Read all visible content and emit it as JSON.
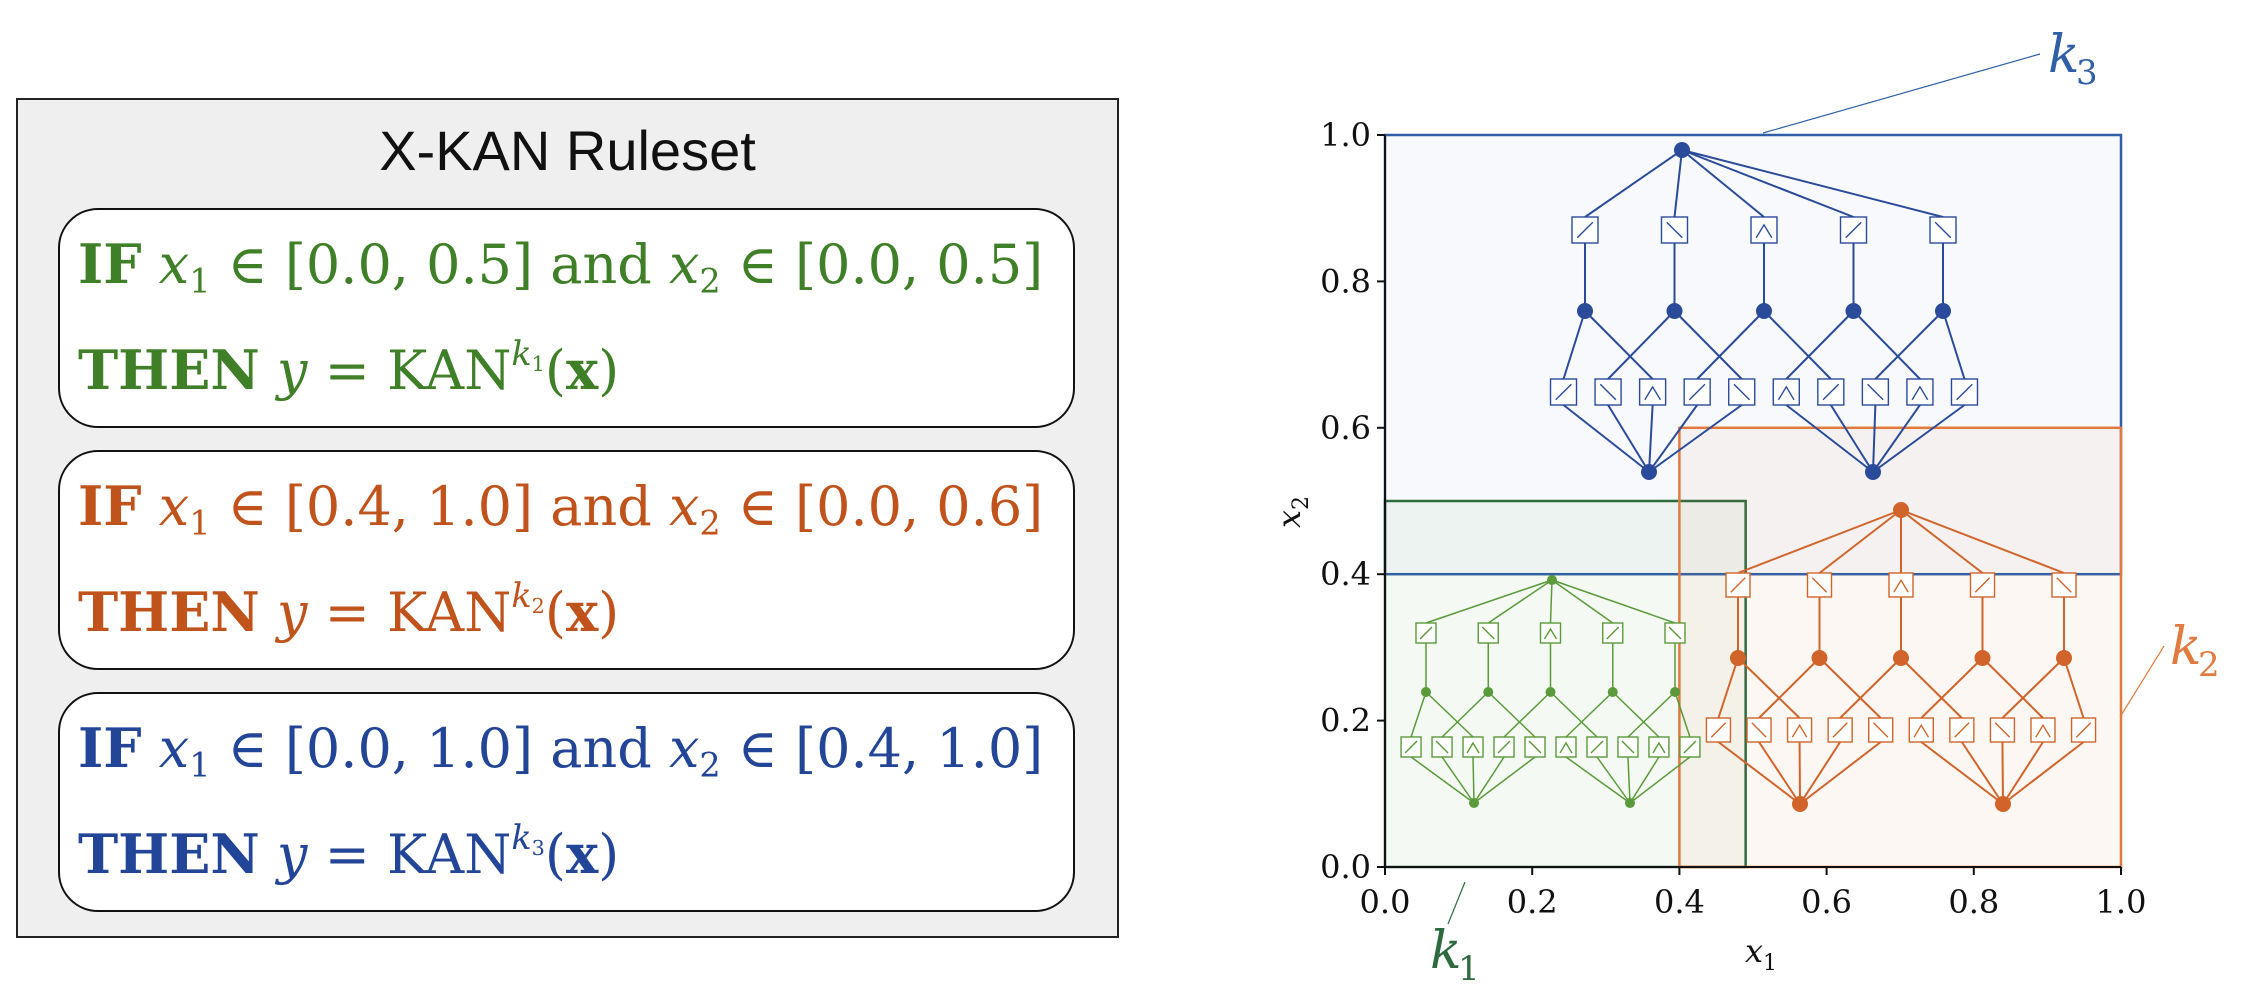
{
  "ruleset": {
    "title": "X-KAN Ruleset",
    "rules": [
      {
        "color": "#3f7f27",
        "if_kw": "IF",
        "x1": "x",
        "x1_sub": "1",
        "in1": " ∈ [0.0, 0.5] ",
        "and": "and",
        "x2": " x",
        "x2_sub": "2",
        "in2": " ∈ [0.0, 0.5]",
        "then_kw": "THEN",
        "y": " y",
        "eq": " = KAN",
        "sup_k": "k",
        "sup_sub": "1",
        "paren_open": "(",
        "xbold": "x",
        "paren_close": ")"
      },
      {
        "color": "#c0521b",
        "if_kw": "IF",
        "x1": "x",
        "x1_sub": "1",
        "in1": " ∈ [0.4, 1.0] ",
        "and": "and",
        "x2": " x",
        "x2_sub": "2",
        "in2": " ∈ [0.0, 0.6]",
        "then_kw": "THEN",
        "y": " y",
        "eq": " = KAN",
        "sup_k": "k",
        "sup_sub": "2",
        "paren_open": "(",
        "xbold": "x",
        "paren_close": ")"
      },
      {
        "color": "#234597",
        "if_kw": "IF",
        "x1": "x",
        "x1_sub": "1",
        "in1": " ∈ [0.0, 1.0] ",
        "and": "and",
        "x2": " x",
        "x2_sub": "2",
        "in2": " ∈ [0.4, 1.0]",
        "then_kw": "THEN",
        "y": " y",
        "eq": " = KAN",
        "sup_k": "k",
        "sup_sub": "3",
        "paren_open": "(",
        "xbold": "x",
        "paren_close": ")"
      }
    ]
  },
  "diagram": {
    "xlabel": "x",
    "xlabel_sub": "1",
    "ylabel": "x",
    "ylabel_sub": "2",
    "xticks": [
      "0.0",
      "0.2",
      "0.4",
      "0.6",
      "0.8",
      "1.0"
    ],
    "yticks": [
      "0.0",
      "0.2",
      "0.4",
      "0.6",
      "0.8",
      "1.0"
    ],
    "regions": [
      {
        "k": "k",
        "k_sub": "1",
        "color": "#2d6a3e",
        "net_color": "#5a9a3a",
        "x_range": [
          0.0,
          0.49
        ],
        "y_range": [
          0.0,
          0.5
        ]
      },
      {
        "k": "k",
        "k_sub": "2",
        "color": "#e07a3f",
        "net_color": "#d0642a",
        "x_range": [
          0.4,
          1.0
        ],
        "y_range": [
          0.0,
          0.6
        ]
      },
      {
        "k": "k",
        "k_sub": "3",
        "color": "#2f5fa6",
        "net_color": "#2a4a9a",
        "x_range": [
          0.0,
          1.0
        ],
        "y_range": [
          0.4,
          1.0
        ]
      }
    ]
  }
}
